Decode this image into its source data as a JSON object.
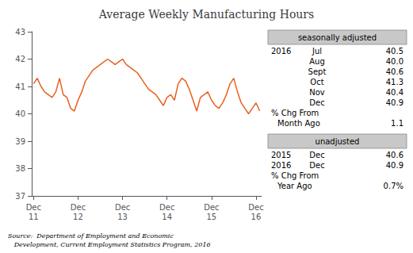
{
  "chart_data": {
    "type": "line",
    "title": "Average Weekly Manufacturing Hours",
    "categories": [
      "Dec\n11",
      null,
      null,
      null,
      null,
      null,
      null,
      null,
      null,
      null,
      null,
      null,
      "Dec\n12",
      null,
      null,
      null,
      null,
      null,
      null,
      null,
      null,
      null,
      null,
      null,
      "Dec\n13",
      null,
      null,
      null,
      null,
      null,
      null,
      null,
      null,
      null,
      null,
      null,
      "Dec\n14",
      null,
      null,
      null,
      null,
      null,
      null,
      null,
      null,
      null,
      null,
      null,
      "Dec\n15",
      null,
      null,
      null,
      null,
      null,
      null,
      null,
      null,
      null,
      null,
      null,
      "Dec\n16",
      null
    ],
    "values": [
      41.1,
      41.3,
      41.0,
      40.8,
      40.7,
      40.6,
      40.8,
      41.3,
      40.7,
      40.6,
      40.2,
      40.1,
      40.5,
      40.8,
      41.2,
      41.4,
      41.6,
      41.7,
      41.8,
      41.9,
      42.0,
      41.9,
      41.8,
      41.9,
      42.0,
      41.8,
      41.7,
      41.6,
      41.5,
      41.3,
      41.1,
      40.9,
      40.8,
      40.7,
      40.5,
      40.3,
      40.6,
      40.7,
      40.5,
      41.1,
      41.3,
      41.2,
      40.9,
      40.5,
      40.1,
      40.6,
      40.7,
      40.8,
      40.5,
      40.3,
      40.2,
      40.4,
      40.7,
      41.1,
      41.3,
      40.8,
      40.4,
      40.2,
      40.0,
      40.2,
      40.4,
      40.1
    ],
    "color": "#E8601C",
    "ylim": [
      37,
      43
    ],
    "yticks": [
      37,
      38,
      39,
      40,
      41,
      42,
      43
    ],
    "grid": false,
    "annotations": [
      {
        "header": "seasonally adjusted",
        "year": "2016",
        "rows": [
          [
            "Jul",
            "40.5"
          ],
          [
            "Aug",
            "40.0"
          ],
          [
            "Sept",
            "40.6"
          ],
          [
            "Oct",
            "41.3"
          ],
          [
            "Nov",
            "40.4"
          ],
          [
            "Dec",
            "40.9"
          ]
        ],
        "change_label": [
          "% Chg From",
          "Month Ago"
        ],
        "change_value": "1.1"
      },
      {
        "header": "unadjusted",
        "rows": [
          [
            "2015",
            "Dec",
            "40.6"
          ],
          [
            "2016",
            "Dec",
            "40.9"
          ]
        ],
        "change_label": [
          "% Chg From",
          "Year Ago"
        ],
        "change_value": "0.7%"
      }
    ],
    "source": "Source:  Department of Employment and Economic\n   Development, Current Employment Statistics Program, 2016"
  }
}
